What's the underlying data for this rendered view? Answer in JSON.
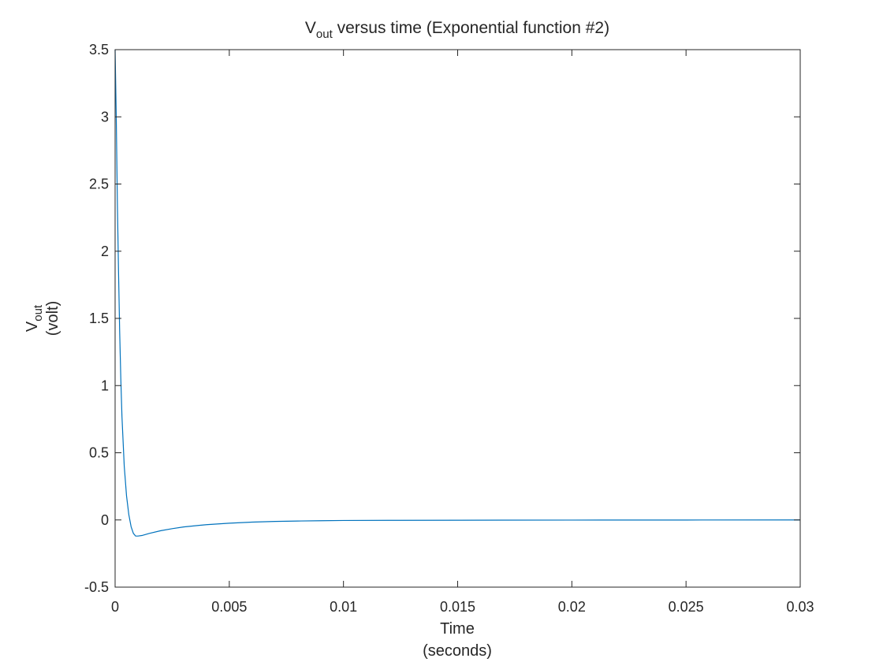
{
  "chart_data": {
    "type": "line",
    "title": {
      "main": "V",
      "sub": "out",
      "rest": " versus time (Exponential function #2)"
    },
    "xlabel": {
      "line1": "Time",
      "line2": "(seconds)"
    },
    "ylabel": {
      "main": "V",
      "sub": "out",
      "line2": "(volt)"
    },
    "xlim": [
      0,
      0.03
    ],
    "ylim": [
      -0.5,
      3.5
    ],
    "xticks": [
      0,
      0.005,
      0.01,
      0.015,
      0.02,
      0.025,
      0.03
    ],
    "xtick_labels": [
      "0",
      "0.005",
      "0.01",
      "0.015",
      "0.02",
      "0.025",
      "0.03"
    ],
    "yticks": [
      -0.5,
      0,
      0.5,
      1,
      1.5,
      2,
      2.5,
      3,
      3.5
    ],
    "ytick_labels": [
      "-0.5",
      "0",
      "0.5",
      "1",
      "1.5",
      "2",
      "2.5",
      "3",
      "3.5"
    ],
    "grid": false,
    "line_color": "#0072BD",
    "series": [
      {
        "x": [
          0,
          5e-05,
          0.0001,
          0.00015,
          0.0002,
          0.00025,
          0.0003,
          0.0004,
          0.0005,
          0.0006,
          0.0007,
          0.0008,
          0.0009,
          0.001,
          0.0012,
          0.0015,
          0.002,
          0.0025,
          0.003,
          0.004,
          0.005,
          0.006,
          0.007,
          0.008,
          0.009,
          0.01,
          0.012,
          0.015,
          0.02,
          0.025,
          0.03
        ],
        "values": [
          3.5,
          3.0,
          2.35,
          1.85,
          1.4,
          1.05,
          0.77,
          0.4,
          0.18,
          0.04,
          -0.05,
          -0.1,
          -0.12,
          -0.12,
          -0.115,
          -0.1,
          -0.08,
          -0.065,
          -0.052,
          -0.035,
          -0.024,
          -0.016,
          -0.011,
          -0.008,
          -0.006,
          -0.004,
          -0.003,
          -0.002,
          -0.001,
          -0.0005,
          0
        ]
      }
    ]
  }
}
